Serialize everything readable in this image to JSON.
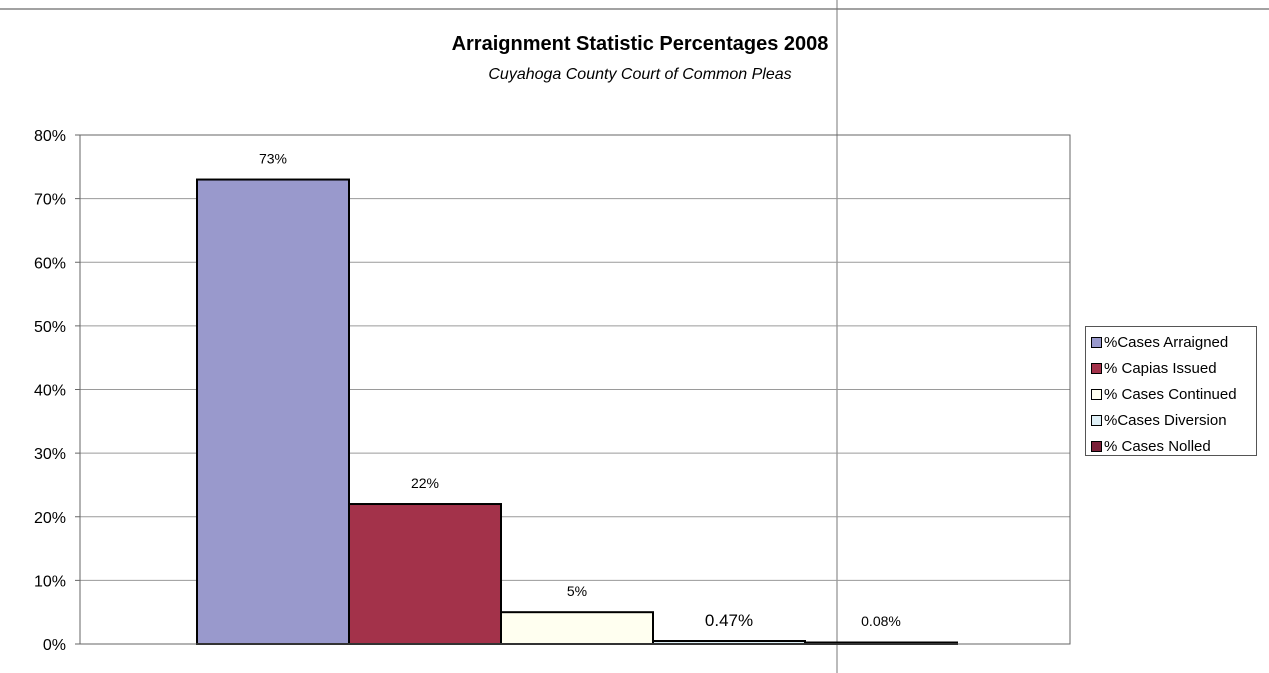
{
  "chart_data": {
    "type": "bar",
    "title": "Arraignment Statistic Percentages 2008",
    "subtitle": "Cuyahoga County Court of Common Pleas",
    "xlabel": "",
    "ylabel": "",
    "ylim": [
      0,
      80
    ],
    "yticks": [
      "0%",
      "10%",
      "20%",
      "30%",
      "40%",
      "50%",
      "60%",
      "70%",
      "80%"
    ],
    "grid": true,
    "legend_position": "right",
    "series": [
      {
        "name": "%Cases Arraigned",
        "value": 73,
        "label": "73%",
        "color": "#9999cc"
      },
      {
        "name": "% Capias Issued",
        "value": 22,
        "label": "22%",
        "color": "#a3324a"
      },
      {
        "name": "% Cases Continued",
        "value": 5,
        "label": "5%",
        "color": "#fffff0"
      },
      {
        "name": "%Cases Diversion",
        "value": 0.47,
        "label": "0.47%",
        "color": "#dff0f7"
      },
      {
        "name": "% Cases Nolled",
        "value": 0.08,
        "label": "0.08%",
        "color": "#7a2038"
      }
    ]
  }
}
